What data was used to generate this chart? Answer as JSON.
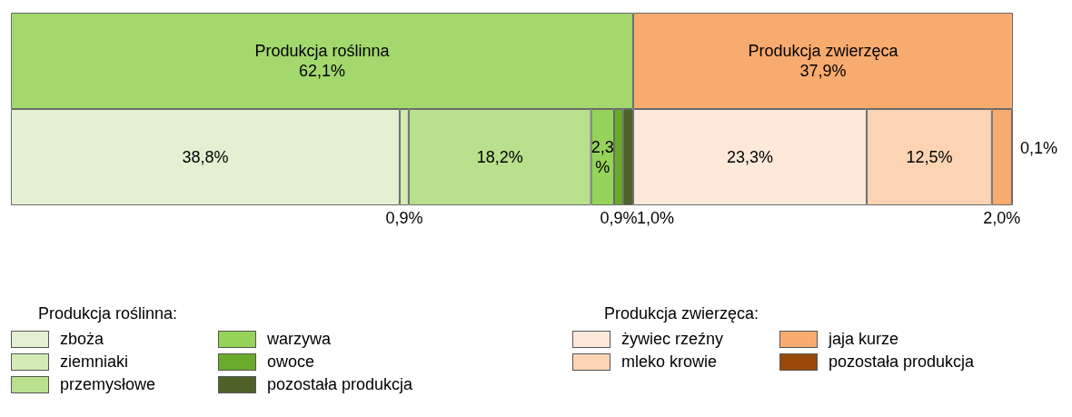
{
  "chart_data": {
    "type": "bar",
    "orientation": "horizontal",
    "stacked": true,
    "legend": "bottom",
    "categories": [
      null,
      null
    ],
    "annotations": [
      "Produkcja roślinna:",
      "Produkcja zwierzęca:"
    ],
    "series": [
      {
        "name": "Produkcja roślinna",
        "color": "#a3d86c",
        "values": [
          62.1,
          null
        ],
        "value_labels": [
          "62,1%",
          null
        ]
      },
      {
        "name": "Produkcja zwierzęca",
        "color": "#f8ab6e",
        "values": [
          37.9,
          null
        ],
        "value_labels": [
          "37,9%",
          null
        ]
      },
      {
        "name": "zboża",
        "color": "#e3f0d2",
        "values": [
          null,
          38.8
        ],
        "value_labels": [
          null,
          "38,8%"
        ]
      },
      {
        "name": "ziemniaki",
        "color": "#d4ebb5",
        "values": [
          null,
          0.9
        ],
        "value_labels": [
          null,
          "0,9%"
        ]
      },
      {
        "name": "przemysłowe",
        "color": "#b9e08c",
        "values": [
          null,
          18.2
        ],
        "value_labels": [
          null,
          "18,2%"
        ]
      },
      {
        "name": "warzywa",
        "color": "#96d35a",
        "values": [
          null,
          2.3
        ],
        "value_labels": [
          null,
          "2,3%"
        ]
      },
      {
        "name": "owoce",
        "color": "#6aab2c",
        "values": [
          null,
          0.9
        ],
        "value_labels": [
          null,
          "0,9%"
        ]
      },
      {
        "name": "pozostała produkcja",
        "color": "#4f6228",
        "values": [
          null,
          1.0
        ],
        "value_labels": [
          null,
          "1,0%"
        ]
      },
      {
        "name": "żywiec rzeźny",
        "color": "#fde8da",
        "values": [
          null,
          23.3
        ],
        "value_labels": [
          null,
          "23,3%"
        ]
      },
      {
        "name": "mleko krowie",
        "color": "#fcd4b3",
        "values": [
          null,
          12.5
        ],
        "value_labels": [
          null,
          "12,5%"
        ]
      },
      {
        "name": "jaja kurze",
        "color": "#f8ab6e",
        "values": [
          null,
          2.0
        ],
        "value_labels": [
          null,
          "2,0%"
        ]
      },
      {
        "name": "pozostała produkcja",
        "color": "#984807",
        "values": [
          null,
          0.1
        ],
        "value_labels": [
          null,
          "0,1%"
        ]
      }
    ]
  }
}
